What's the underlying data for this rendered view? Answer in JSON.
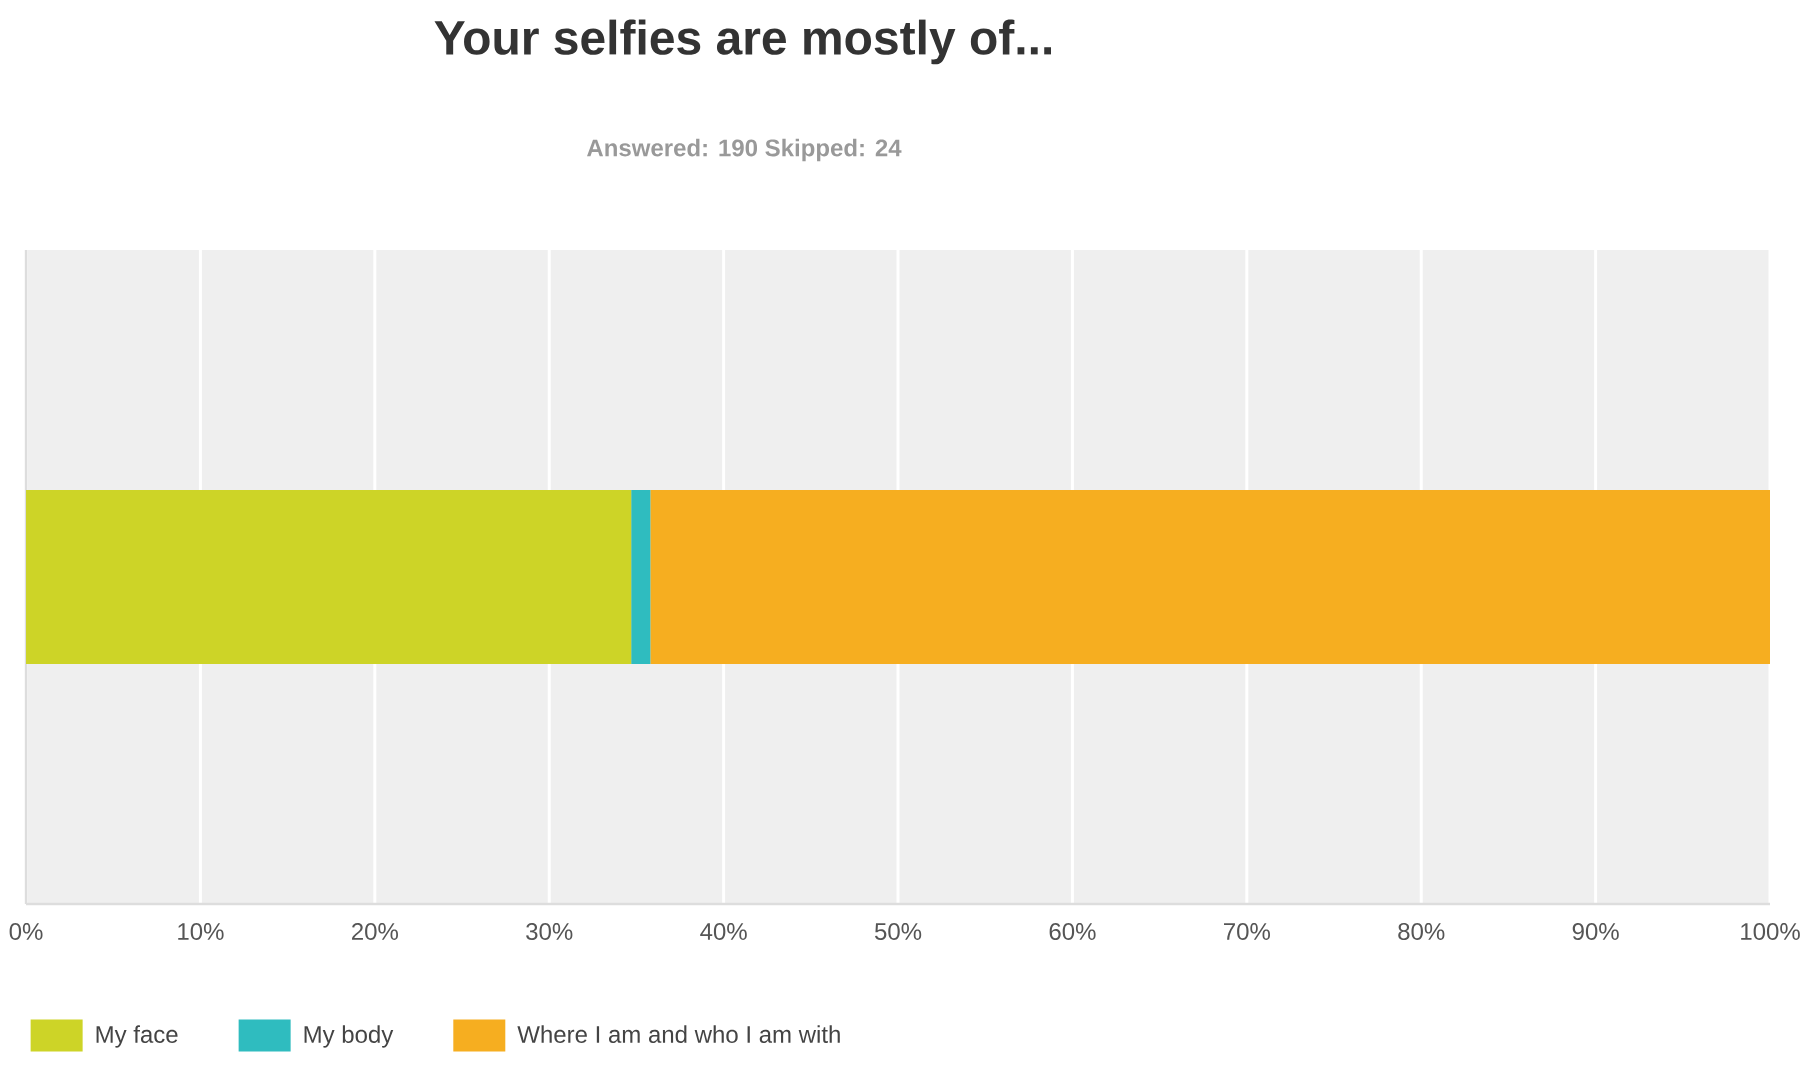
{
  "chart_data": {
    "type": "bar",
    "title": "Your selfies are mostly of...",
    "subtitle": "Answered: 190    Skipped: 24",
    "orientation": "horizontal",
    "stacked": true,
    "categories": [
      null
    ],
    "series": [
      {
        "name": "My face",
        "color": "#cdd427",
        "values": [
          34.7
        ]
      },
      {
        "name": "My body",
        "color": "#2fbcbf",
        "values": [
          1.1
        ]
      },
      {
        "name": "Where I am and who I am with",
        "color": "#f6ae20",
        "values": [
          64.2
        ]
      }
    ],
    "xlim": [
      0,
      100
    ],
    "xticks": [
      {
        "value": 0,
        "label": "0%"
      },
      {
        "value": 10,
        "label": "10%"
      },
      {
        "value": 20,
        "label": "20%"
      },
      {
        "value": 30,
        "label": "30%"
      },
      {
        "value": 40,
        "label": "40%"
      },
      {
        "value": 50,
        "label": "50%"
      },
      {
        "value": 60,
        "label": "60%"
      },
      {
        "value": 70,
        "label": "70%"
      },
      {
        "value": 80,
        "label": "80%"
      },
      {
        "value": 90,
        "label": "90%"
      },
      {
        "value": 100,
        "label": "100%"
      }
    ],
    "grid": "x",
    "legend": "bottom left",
    "tick_labels": "x"
  }
}
